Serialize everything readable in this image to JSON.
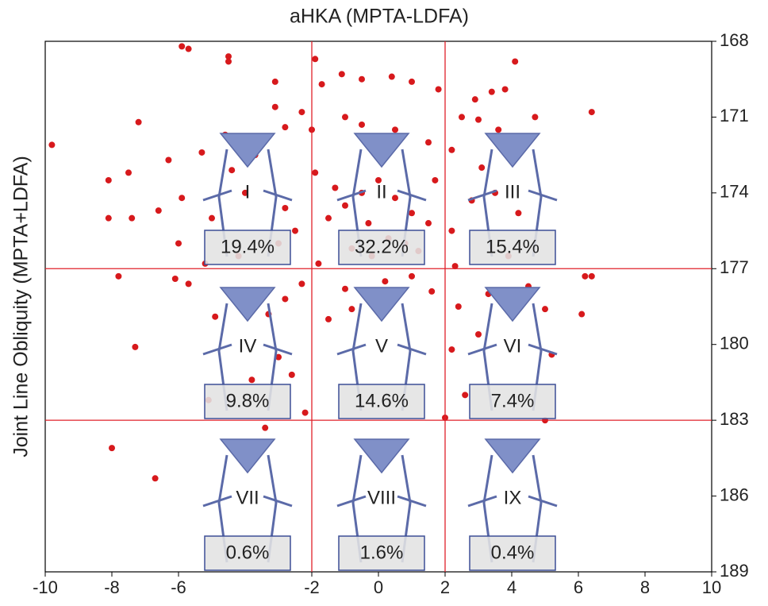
{
  "chart_data": {
    "type": "scatter",
    "title": "aHKA (MPTA-LDFA)",
    "y_label": "Joint Line Obliquity (MPTA+LDFA)",
    "xlim": [
      -10,
      10
    ],
    "ylim": [
      168,
      189
    ],
    "y_reversed": true,
    "y_axis_side": "right",
    "xticks": [
      -10,
      -8,
      -6,
      -2,
      0,
      2,
      4,
      6,
      8,
      10
    ],
    "yticks": [
      168,
      171,
      174,
      177,
      180,
      183,
      186,
      189
    ],
    "vlines": [
      -2,
      2
    ],
    "hlines": [
      177,
      183
    ],
    "line_color": "#e0202a",
    "color": "#d7191c",
    "x": [
      -9.8,
      -8,
      -6.7,
      -7.8,
      -7.3,
      -8.1,
      -7.5,
      -8.1,
      -7.4,
      -7.2,
      -5.9,
      -5.7,
      -4.5,
      -4.5,
      -3.1,
      6.4,
      4.1,
      6.2,
      6.4,
      6.1,
      5.2,
      5.0,
      2.0,
      -2.2,
      -3.4,
      -1.9,
      0.2,
      -4.9,
      -6.1,
      -5.7,
      -5.9,
      -6.6,
      -6.3,
      -5.3,
      -4.4,
      -3.7,
      -3.1,
      -2.3,
      -1.7,
      -1.1,
      -0.5,
      0.4,
      1.0,
      1.8,
      2.9,
      3.4,
      3.8,
      2.5,
      3.0,
      3.6,
      4.7,
      3.1,
      2.2,
      1.5,
      0.5,
      -0.5,
      -1.0,
      -2.0,
      -2.8,
      -4.0,
      -5.0,
      -6.0,
      -5.2,
      -4.2,
      -3.0,
      -2.5,
      -1.5,
      -1.0,
      -0.5,
      0,
      0.5,
      1.0,
      1.5,
      2.2,
      2.8,
      3.5,
      4.2,
      1.2,
      0.8,
      -0.2,
      -0.8,
      -1.8,
      -2.3,
      -2.8,
      -3.3,
      -1.0,
      0.2,
      1.0,
      1.6,
      2.4,
      3.3,
      4.5,
      5.0,
      3.0,
      2.2,
      -3.0,
      -3.8,
      -1.5,
      -0.8,
      -2.6,
      -5.1,
      2.6,
      -0.3,
      0.3,
      -1.3,
      -1.9,
      1.7,
      -2.8,
      3.9,
      -4.6,
      2.3
    ],
    "y": [
      172.1,
      184.1,
      185.3,
      177.3,
      180.1,
      173.5,
      173.2,
      175,
      175,
      171.2,
      168.2,
      168.3,
      168.6,
      168.8,
      169.6,
      170.8,
      168.8,
      177.3,
      177.3,
      178.8,
      180.4,
      183,
      182.9,
      182.7,
      183.3,
      168.7,
      184.6,
      178.9,
      177.4,
      177.6,
      174.2,
      174.7,
      172.7,
      172.4,
      173.1,
      172.5,
      170.6,
      170.8,
      169.7,
      169.3,
      169.5,
      169.4,
      169.6,
      169.9,
      170.3,
      170.0,
      169.9,
      171.0,
      171.1,
      171.5,
      171.0,
      173.0,
      172.3,
      172.0,
      171.5,
      171.3,
      171.0,
      171.5,
      171.4,
      174.0,
      175.0,
      176.0,
      176.8,
      176.5,
      176.0,
      175.5,
      175.0,
      174.5,
      174.0,
      173.5,
      174.2,
      174.8,
      175.2,
      175.5,
      174.3,
      174.0,
      174.8,
      176.3,
      176.0,
      176.5,
      176.2,
      176.8,
      177.6,
      178.2,
      178.8,
      177.8,
      177.5,
      177.3,
      177.9,
      178.5,
      178.0,
      177.7,
      178.6,
      179.6,
      180.2,
      180.5,
      181.4,
      179.0,
      178.6,
      181.2,
      182.2,
      182.0,
      175.2,
      175.8,
      173.8,
      173.2,
      173.5,
      174.6,
      176.5,
      171.7,
      176.9
    ],
    "annotations": [
      {
        "label": "I",
        "text": "19.4%"
      },
      {
        "label": "II",
        "text": "32.2%"
      },
      {
        "label": "III",
        "text": "15.4%"
      },
      {
        "label": "IV",
        "text": "9.8%"
      },
      {
        "label": "V",
        "text": "14.6%"
      },
      {
        "label": "VI",
        "text": "7.4%"
      },
      {
        "label": "VII",
        "text": "0.6%"
      },
      {
        "label": "VIII",
        "text": "1.6%"
      },
      {
        "label": "IX",
        "text": "0.4%"
      }
    ]
  }
}
